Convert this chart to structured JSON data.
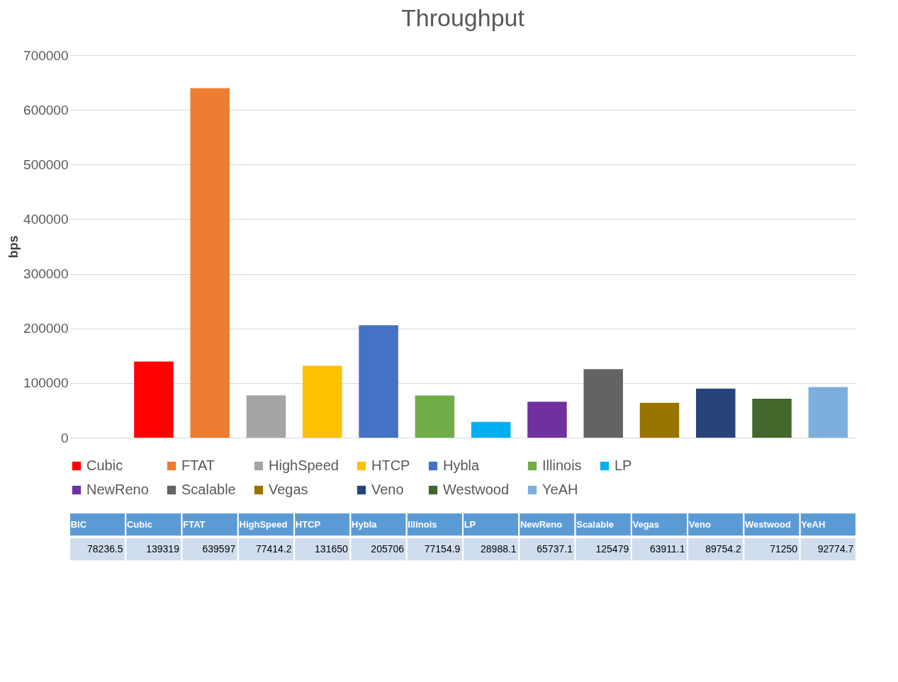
{
  "chart_data": {
    "type": "bar",
    "title": "Throughput",
    "ylabel": "bps",
    "categories": [
      "BIC",
      "Cubic",
      "FTAT",
      "HighSpeed",
      "HTCP",
      "Hybla",
      "Illinois",
      "LP",
      "NewReno",
      "Scalable",
      "Vegas",
      "Veno",
      "Westwood",
      "YeAH"
    ],
    "series": [
      {
        "name": "Cubic",
        "color": "#ff0000",
        "values": [
          null,
          139319,
          null,
          null,
          null,
          null,
          null,
          null,
          null,
          null,
          null,
          null,
          null,
          null
        ]
      },
      {
        "name": "FTAT",
        "color": "#ed7d31",
        "values": [
          null,
          null,
          639597,
          null,
          null,
          null,
          null,
          null,
          null,
          null,
          null,
          null,
          null,
          null
        ]
      },
      {
        "name": "HighSpeed",
        "color": "#a5a5a5",
        "values": [
          null,
          null,
          null,
          77414.2,
          null,
          null,
          null,
          null,
          null,
          null,
          null,
          null,
          null,
          null
        ]
      },
      {
        "name": "HTCP",
        "color": "#ffc000",
        "values": [
          null,
          null,
          null,
          null,
          131650,
          null,
          null,
          null,
          null,
          null,
          null,
          null,
          null,
          null
        ]
      },
      {
        "name": "Hybla",
        "color": "#4472c4",
        "values": [
          null,
          null,
          null,
          null,
          null,
          205706,
          null,
          null,
          null,
          null,
          null,
          null,
          null,
          null
        ]
      },
      {
        "name": "Illinois",
        "color": "#70ad47",
        "values": [
          null,
          null,
          null,
          null,
          null,
          null,
          77154.9,
          null,
          null,
          null,
          null,
          null,
          null,
          null
        ]
      },
      {
        "name": "LP",
        "color": "#00b0f0",
        "values": [
          null,
          null,
          null,
          null,
          null,
          null,
          null,
          28988.1,
          null,
          null,
          null,
          null,
          null,
          null
        ]
      },
      {
        "name": "NewReno",
        "color": "#7030a0",
        "values": [
          null,
          null,
          null,
          null,
          null,
          null,
          null,
          null,
          65737.1,
          null,
          null,
          null,
          null,
          null
        ]
      },
      {
        "name": "Scalable",
        "color": "#636363",
        "values": [
          null,
          null,
          null,
          null,
          null,
          null,
          null,
          null,
          null,
          125479,
          null,
          null,
          null,
          null
        ]
      },
      {
        "name": "Vegas",
        "color": "#997300",
        "values": [
          null,
          null,
          null,
          null,
          null,
          null,
          null,
          null,
          null,
          null,
          63911.1,
          null,
          null,
          null
        ]
      },
      {
        "name": "Veno",
        "color": "#264478",
        "values": [
          null,
          null,
          null,
          null,
          null,
          null,
          null,
          null,
          null,
          null,
          null,
          89754.2,
          null,
          null
        ]
      },
      {
        "name": "Westwood",
        "color": "#43682b",
        "values": [
          null,
          null,
          null,
          null,
          null,
          null,
          null,
          null,
          null,
          null,
          null,
          null,
          71250,
          null
        ]
      },
      {
        "name": "YeAH",
        "color": "#7cafdd",
        "values": [
          null,
          null,
          null,
          null,
          null,
          null,
          null,
          null,
          null,
          null,
          null,
          null,
          null,
          92774.7
        ]
      }
    ],
    "value_labels": [
      "78236.5",
      "139319",
      "639597",
      "77414.2",
      "131650",
      "205706",
      "77154.9",
      "28988.1",
      "65737.1",
      "125479",
      "63911.1",
      "89754.2",
      "71250",
      "92774.7"
    ],
    "stacked": true,
    "ylim": [
      0,
      700000
    ],
    "yticks": [
      0,
      100000,
      200000,
      300000,
      400000,
      500000,
      600000,
      700000
    ],
    "grid": "y",
    "legend": "bottom",
    "tick_labels": "y"
  }
}
